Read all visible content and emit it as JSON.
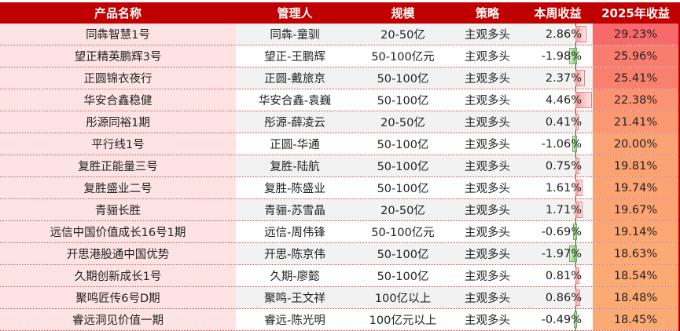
{
  "chart_data": {
    "type": "table",
    "columns": [
      "产品名称",
      "管理人",
      "规模",
      "策略",
      "本周收益",
      "2025年收益"
    ],
    "rows": [
      [
        "同犇智慧1号",
        "同犇-童驯",
        "20-50亿",
        "主观多头",
        "2.86%",
        "29.23%"
      ],
      [
        "望正精英鹏辉3号",
        "望正-王鹏辉",
        "50-100亿元",
        "主观多头",
        "-1.98%",
        "25.96%"
      ],
      [
        "正圆锦衣夜行",
        "正圆-戴旅京",
        "50-100亿",
        "主观多头",
        "2.37%",
        "25.41%"
      ],
      [
        "华安合鑫稳健",
        "华安合鑫-袁巍",
        "50-100亿",
        "主观多头",
        "4.46%",
        "22.38%"
      ],
      [
        "彤源同裕1期",
        "彤源-薛凌云",
        "20-50亿",
        "主观多头",
        "0.41%",
        "21.41%"
      ],
      [
        "平行线1号",
        "正圆-华通",
        "50-100亿",
        "主观多头",
        "-1.06%",
        "20.00%"
      ],
      [
        "复胜正能量三号",
        "复胜-陆航",
        "50-100亿",
        "主观多头",
        "0.75%",
        "19.81%"
      ],
      [
        "复胜盛业二号",
        "复胜-陈盛业",
        "50-100亿",
        "主观多头",
        "1.61%",
        "19.74%"
      ],
      [
        "青骊长胜",
        "青骊-苏雪晶",
        "20-50亿",
        "主观多头",
        "1.71%",
        "19.67%"
      ],
      [
        "远信中国价值成长16号1期",
        "远信-周伟锋",
        "50-100亿元",
        "主观多头",
        "-0.69%",
        "19.14%"
      ],
      [
        "开思港股通中国优势",
        "开思-陈京伟",
        "50-100亿",
        "主观多头",
        "-1.97%",
        "18.63%"
      ],
      [
        "久期创新成长1号",
        "久期-廖懿",
        "50-100亿",
        "主观多头",
        "0.81%",
        "18.54%"
      ],
      [
        "聚鸣匠传6号D期",
        "聚鸣-王文祥",
        "100亿以上",
        "主观多头",
        "0.86%",
        "18.48%"
      ],
      [
        "睿远洞见价值一期",
        "睿远-陈光明",
        "100亿元以上",
        "主观多头",
        "-0.49%",
        "18.45%"
      ]
    ],
    "weekly_databar": {
      "positive_color": "#f08080",
      "negative_color": "#6cb05c"
    },
    "annual_heatmap": {
      "high_color": "#f8696b",
      "low_color": "#fcaa74"
    }
  },
  "colors": {
    "header_bg": "#c00000",
    "name_col_bg": "#fde3e3"
  }
}
